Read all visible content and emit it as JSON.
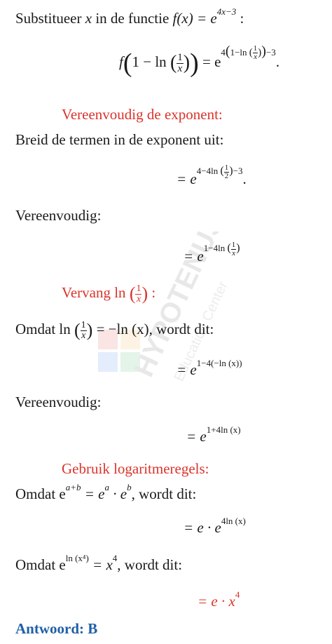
{
  "intro": {
    "label": "Substitueer",
    "x": "x",
    "mid": "in de functie",
    "fx": "f(x) = e",
    "fx_exp": "4x−3",
    "colon": ":"
  },
  "eq1": {
    "f": "f",
    "inner": "1 − ln",
    "eq": "= e",
    "exp_lead": "4",
    "exp_inner": "1−ln",
    "exp_tail": "−3",
    "end": "."
  },
  "frac_1_x": {
    "num": "1",
    "den": "x"
  },
  "frac_1_2": {
    "num": "1",
    "den": "2"
  },
  "headings": {
    "h1": "Vereenvoudig de exponent:",
    "h2": "Vervang ln",
    "h2_colon": ":",
    "h3": "Gebruik logaritmeregels:"
  },
  "lines": {
    "expand": "Breid de termen in de exponent uit:",
    "simplify1": "Vereenvoudig:",
    "omdat1_a": "Omdat ln",
    "omdat1_b": "= −ln (x), wordt dit:",
    "simplify2": "Vereenvoudig:",
    "omdat2_a": "Omdat e",
    "omdat2_exp1": "a+b",
    "omdat2_b": "= e",
    "omdat2_exp2": "a",
    "omdat2_c": "· e",
    "omdat2_exp3": "b",
    "omdat2_d": ", wordt dit:",
    "omdat3_a": "Omdat e",
    "omdat3_exp": "ln (x⁴)",
    "omdat3_b": "= x",
    "omdat3_exp2": "4",
    "omdat3_c": ", wordt dit:"
  },
  "eqs": {
    "e2_pre": "= e",
    "e2_exp_a": "4−4ln",
    "e2_exp_b": "−3",
    "e2_end": ".",
    "e3_pre": "= e",
    "e3_exp": "1−4ln",
    "e4_pre": "= e",
    "e4_exp": "1−4(−ln (x))",
    "e5_pre": "= e",
    "e5_exp": "1+4ln (x)",
    "e6_pre": "= e · e",
    "e6_exp": "4ln (x)",
    "e7_pre": "= e · x",
    "e7_exp": "4"
  },
  "answer": "Antwoord: B",
  "watermark": {
    "line1": "HYPOTENUSE",
    "line2": "Education Center"
  },
  "colors": {
    "accent_red": "#d9342b",
    "answer_blue": "#1f5fa8"
  }
}
